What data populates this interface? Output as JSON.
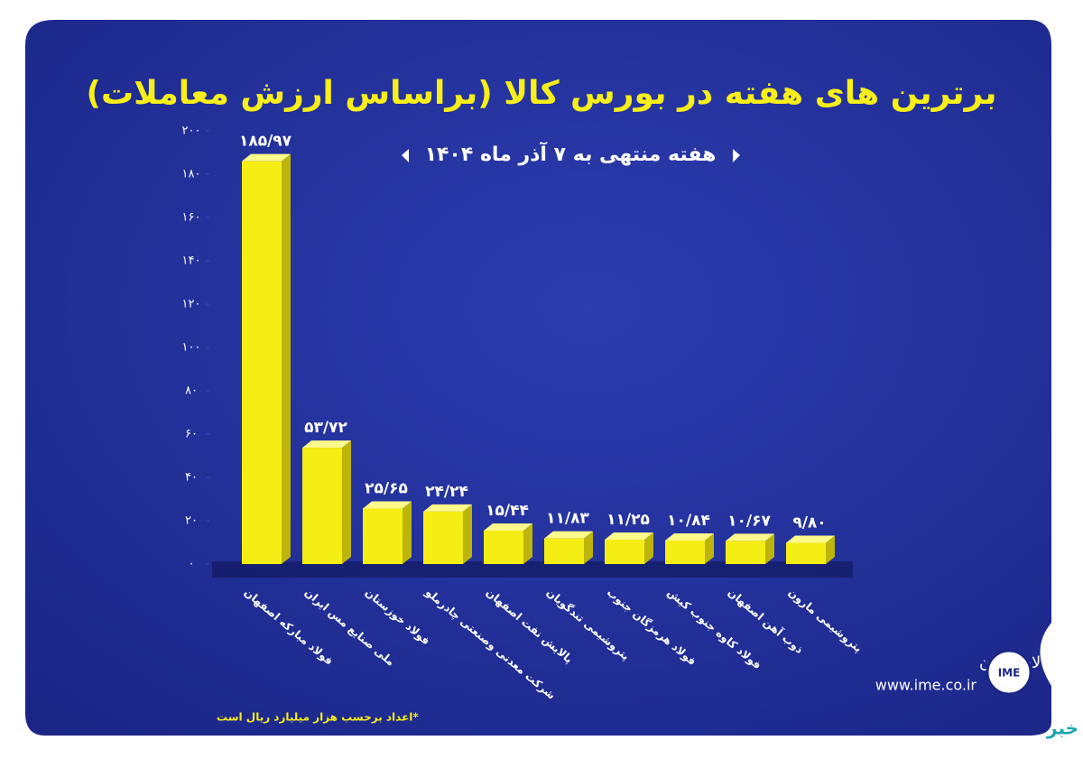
{
  "chart_data": {
    "type": "bar",
    "title": "برترین های هفته در بورس کالا (براساس ارزش معاملات)",
    "subtitle": "هفته منتهی به ۷ آذر ماه ۱۴۰۴",
    "footnote": "*اعداد برحسب هزار میلیارد ریال است",
    "categories": [
      "فولاد مبارکه اصفهان",
      "ملی صنایع مس ایران",
      "فولاد خوزستان",
      "شرکت معدنی وصنعتی چادرملو",
      "پالایش نفت اصفهان",
      "پتروشیمی تندگویان",
      "فولاد هرمزگان جنوب",
      "فولاد کاوه جنوب کیش",
      "ذوب آهن اصفهان",
      "پتروشیمی مارون"
    ],
    "values": [
      185.97,
      53.72,
      25.65,
      24.24,
      15.44,
      11.83,
      11.25,
      10.84,
      10.67,
      9.8
    ],
    "value_labels": [
      "۱۸۵/۹۷",
      "۵۳/۷۲",
      "۲۵/۶۵",
      "۲۴/۲۴",
      "۱۵/۴۴",
      "۱۱/۸۳",
      "۱۱/۲۵",
      "۱۰/۸۴",
      "۱۰/۶۷",
      "۹/۸۰"
    ],
    "color": "#f5ee14",
    "ylim": [
      0,
      200
    ],
    "yticks": [
      {
        "value": 0,
        "label": "۰"
      },
      {
        "value": 20,
        "label": "۲۰"
      },
      {
        "value": 40,
        "label": "۴۰"
      },
      {
        "value": 60,
        "label": "۶۰"
      },
      {
        "value": 80,
        "label": "۸۰"
      },
      {
        "value": 100,
        "label": "۱۰۰"
      },
      {
        "value": 120,
        "label": "۱۲۰"
      },
      {
        "value": 140,
        "label": "۱۴۰"
      },
      {
        "value": 160,
        "label": "۱۶۰"
      },
      {
        "value": 180,
        "label": "۱۸۰"
      },
      {
        "value": 200,
        "label": "۲۰۰"
      }
    ],
    "grid": false
  },
  "logo": {
    "name": "بورس کالای ایران",
    "url": "www.ime.co.ir",
    "emblem": "IME",
    "corner": "کالا خبر"
  }
}
